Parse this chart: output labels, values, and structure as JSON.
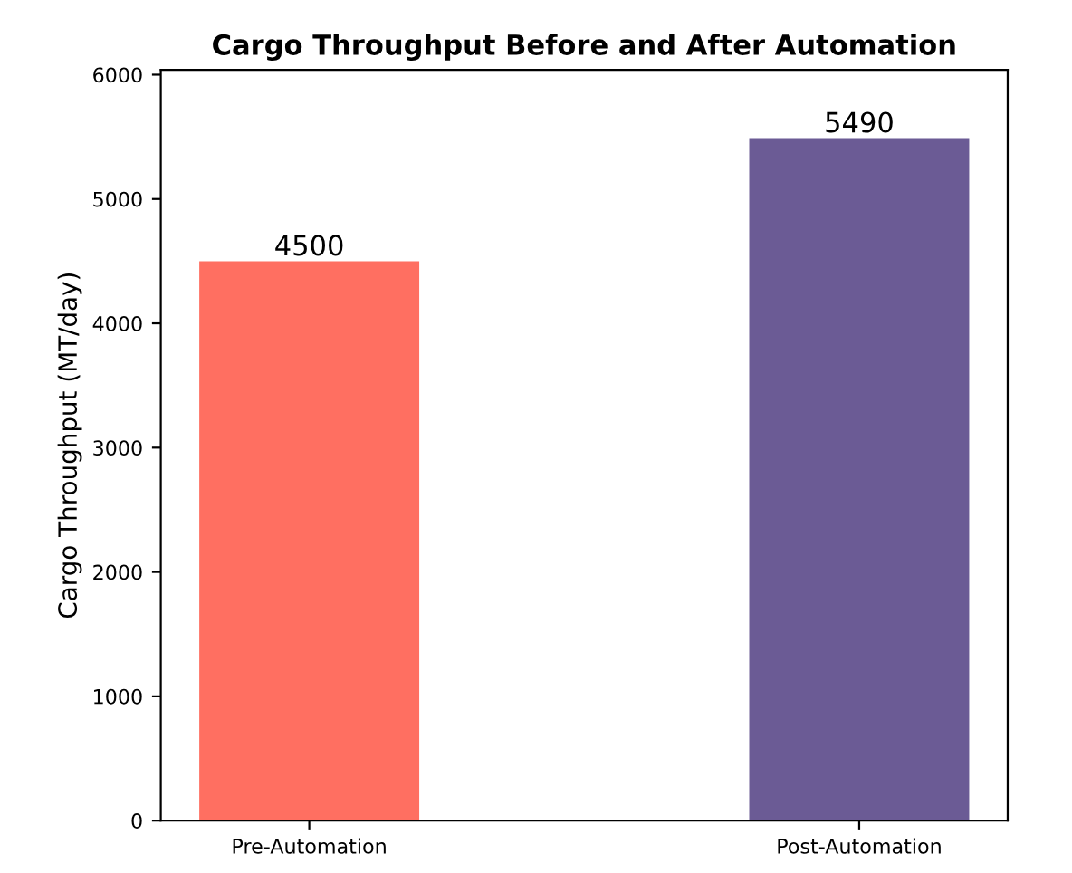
{
  "chart_data": {
    "type": "bar",
    "title": "Cargo Throughput Before and After Automation",
    "ylabel": "Cargo Throughput (MT/day)",
    "categories": [
      "Pre-Automation",
      "Post-Automation"
    ],
    "values": [
      4500,
      5490
    ],
    "colors": [
      "#ff6f61",
      "#6b5b95"
    ],
    "ylim": [
      0,
      6039
    ],
    "yticks": [
      0,
      1000,
      2000,
      3000,
      4000,
      5000,
      6000
    ],
    "data_labels": true,
    "grid": false,
    "legend": false
  }
}
